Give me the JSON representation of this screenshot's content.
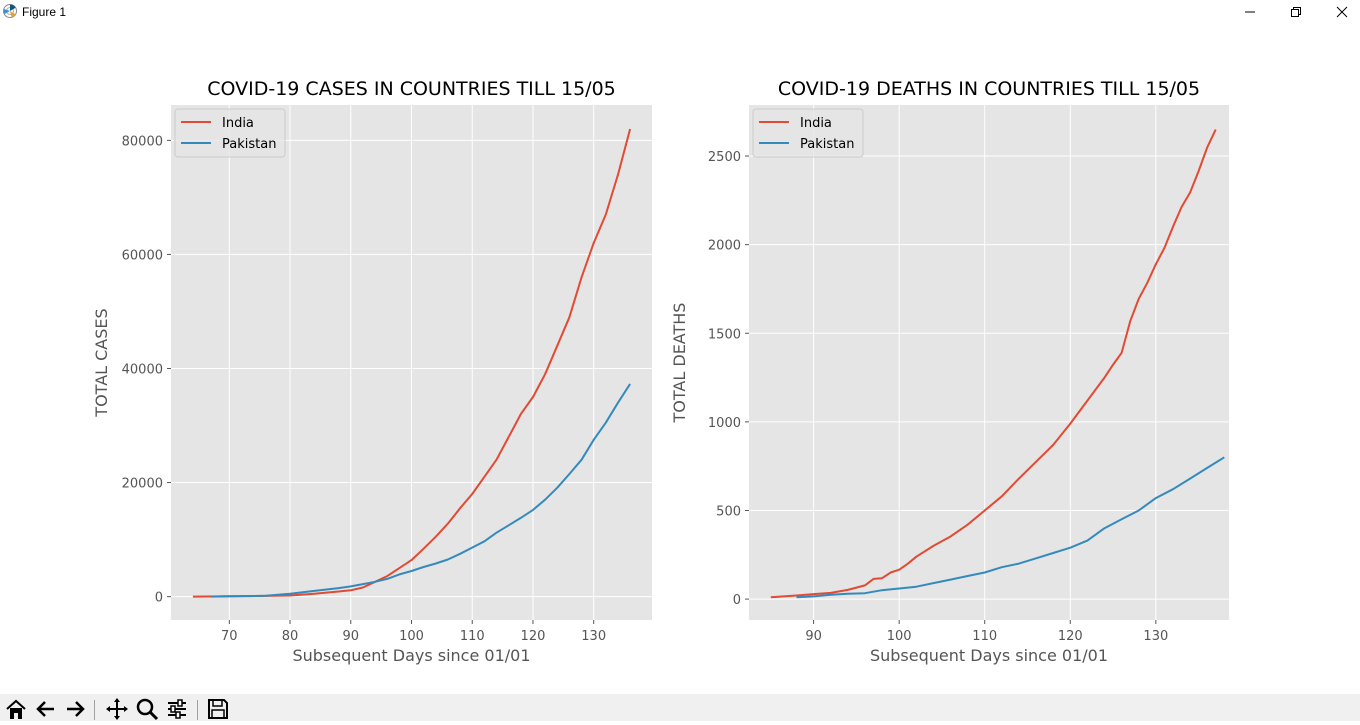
{
  "window": {
    "title": "Figure 1",
    "icons": {
      "app": "matplotlib-icon",
      "minimize": "minimize-icon",
      "maximize": "restore-icon",
      "close": "close-icon"
    }
  },
  "toolbar": {
    "buttons": [
      "home-icon",
      "back-icon",
      "forward-icon",
      "pan-icon",
      "zoom-icon",
      "configure-subplots-icon",
      "save-icon"
    ],
    "coordinates": ""
  },
  "colors": {
    "india": "#E24A33",
    "pakistan": "#348ABD",
    "axes_bg": "#E5E5E5",
    "grid": "#FFFFFF"
  },
  "chart_data": [
    {
      "type": "line",
      "title": "COVID-19 CASES IN COUNTRIES TILL 15/05",
      "xlabel": "Subsequent Days since 01/01",
      "ylabel": "TOTAL CASES",
      "xlim": [
        60.4,
        139.6
      ],
      "ylim": [
        -4100,
        86200
      ],
      "xticks": [
        70,
        80,
        90,
        100,
        110,
        120,
        130
      ],
      "yticks": [
        0,
        20000,
        40000,
        60000,
        80000
      ],
      "grid": true,
      "legend": "top-left",
      "series": [
        {
          "name": "India",
          "color": "#E24A33",
          "points": [
            [
              64,
              0
            ],
            [
              70,
              50
            ],
            [
              76,
              120
            ],
            [
              80,
              200
            ],
            [
              84,
              500
            ],
            [
              88,
              900
            ],
            [
              90,
              1100
            ],
            [
              92,
              1600
            ],
            [
              94,
              2600
            ],
            [
              96,
              3600
            ],
            [
              98,
              5000
            ],
            [
              100,
              6400
            ],
            [
              102,
              8400
            ],
            [
              104,
              10500
            ],
            [
              106,
              12800
            ],
            [
              108,
              15500
            ],
            [
              110,
              18000
            ],
            [
              112,
              21000
            ],
            [
              114,
              24000
            ],
            [
              116,
              28000
            ],
            [
              118,
              32000
            ],
            [
              120,
              35000
            ],
            [
              122,
              39000
            ],
            [
              124,
              44000
            ],
            [
              126,
              49000
            ],
            [
              128,
              56000
            ],
            [
              130,
              62000
            ],
            [
              132,
              67000
            ],
            [
              134,
              74000
            ],
            [
              136,
              82000
            ]
          ]
        },
        {
          "name": "Pakistan",
          "color": "#348ABD",
          "points": [
            [
              67,
              0
            ],
            [
              70,
              50
            ],
            [
              76,
              150
            ],
            [
              80,
              500
            ],
            [
              84,
              1000
            ],
            [
              88,
              1500
            ],
            [
              90,
              1800
            ],
            [
              92,
              2200
            ],
            [
              94,
              2600
            ],
            [
              96,
              3100
            ],
            [
              98,
              3900
            ],
            [
              100,
              4500
            ],
            [
              102,
              5200
            ],
            [
              104,
              5800
            ],
            [
              106,
              6500
            ],
            [
              108,
              7500
            ],
            [
              110,
              8600
            ],
            [
              112,
              9700
            ],
            [
              114,
              11200
            ],
            [
              116,
              12500
            ],
            [
              118,
              13800
            ],
            [
              120,
              15200
            ],
            [
              122,
              17000
            ],
            [
              124,
              19100
            ],
            [
              126,
              21500
            ],
            [
              128,
              24000
            ],
            [
              130,
              27500
            ],
            [
              132,
              30500
            ],
            [
              134,
              34000
            ],
            [
              136,
              37300
            ]
          ]
        }
      ]
    },
    {
      "type": "line",
      "title": "COVID-19 DEATHS IN COUNTRIES TILL 15/05",
      "xlabel": "Subsequent Days since 01/01",
      "ylabel": "TOTAL DEATHS",
      "xlim": [
        82.45,
        138.55
      ],
      "ylim": [
        -118,
        2788
      ],
      "xticks": [
        90,
        100,
        110,
        120,
        130
      ],
      "yticks": [
        0,
        500,
        1000,
        1500,
        2000,
        2500
      ],
      "grid": true,
      "legend": "top-left",
      "series": [
        {
          "name": "India",
          "color": "#E24A33",
          "points": [
            [
              85,
              10
            ],
            [
              88,
              20
            ],
            [
              90,
              28
            ],
            [
              92,
              35
            ],
            [
              94,
              52
            ],
            [
              96,
              77
            ],
            [
              97,
              114
            ],
            [
              98,
              118
            ],
            [
              99,
              150
            ],
            [
              100,
              166
            ],
            [
              101,
              199
            ],
            [
              102,
              239
            ],
            [
              104,
              300
            ],
            [
              106,
              353
            ],
            [
              108,
              420
            ],
            [
              110,
              500
            ],
            [
              112,
              580
            ],
            [
              114,
              680
            ],
            [
              116,
              775
            ],
            [
              118,
              870
            ],
            [
              120,
              990
            ],
            [
              122,
              1120
            ],
            [
              124,
              1250
            ],
            [
              125,
              1323
            ],
            [
              126,
              1389
            ],
            [
              127,
              1568
            ],
            [
              128,
              1694
            ],
            [
              129,
              1785
            ],
            [
              130,
              1889
            ],
            [
              131,
              1981
            ],
            [
              132,
              2101
            ],
            [
              133,
              2212
            ],
            [
              134,
              2294
            ],
            [
              135,
              2415
            ],
            [
              136,
              2549
            ],
            [
              137,
              2649
            ]
          ]
        },
        {
          "name": "Pakistan",
          "color": "#348ABD",
          "points": [
            [
              88,
              10
            ],
            [
              90,
              15
            ],
            [
              92,
              25
            ],
            [
              94,
              30
            ],
            [
              96,
              33
            ],
            [
              98,
              50
            ],
            [
              100,
              60
            ],
            [
              102,
              70
            ],
            [
              104,
              90
            ],
            [
              106,
              110
            ],
            [
              108,
              130
            ],
            [
              110,
              150
            ],
            [
              112,
              180
            ],
            [
              114,
              200
            ],
            [
              116,
              230
            ],
            [
              118,
              260
            ],
            [
              120,
              290
            ],
            [
              122,
              330
            ],
            [
              124,
              400
            ],
            [
              126,
              450
            ],
            [
              128,
              500
            ],
            [
              130,
              570
            ],
            [
              132,
              620
            ],
            [
              134,
              680
            ],
            [
              136,
              740
            ],
            [
              138,
              800
            ]
          ]
        }
      ]
    }
  ]
}
